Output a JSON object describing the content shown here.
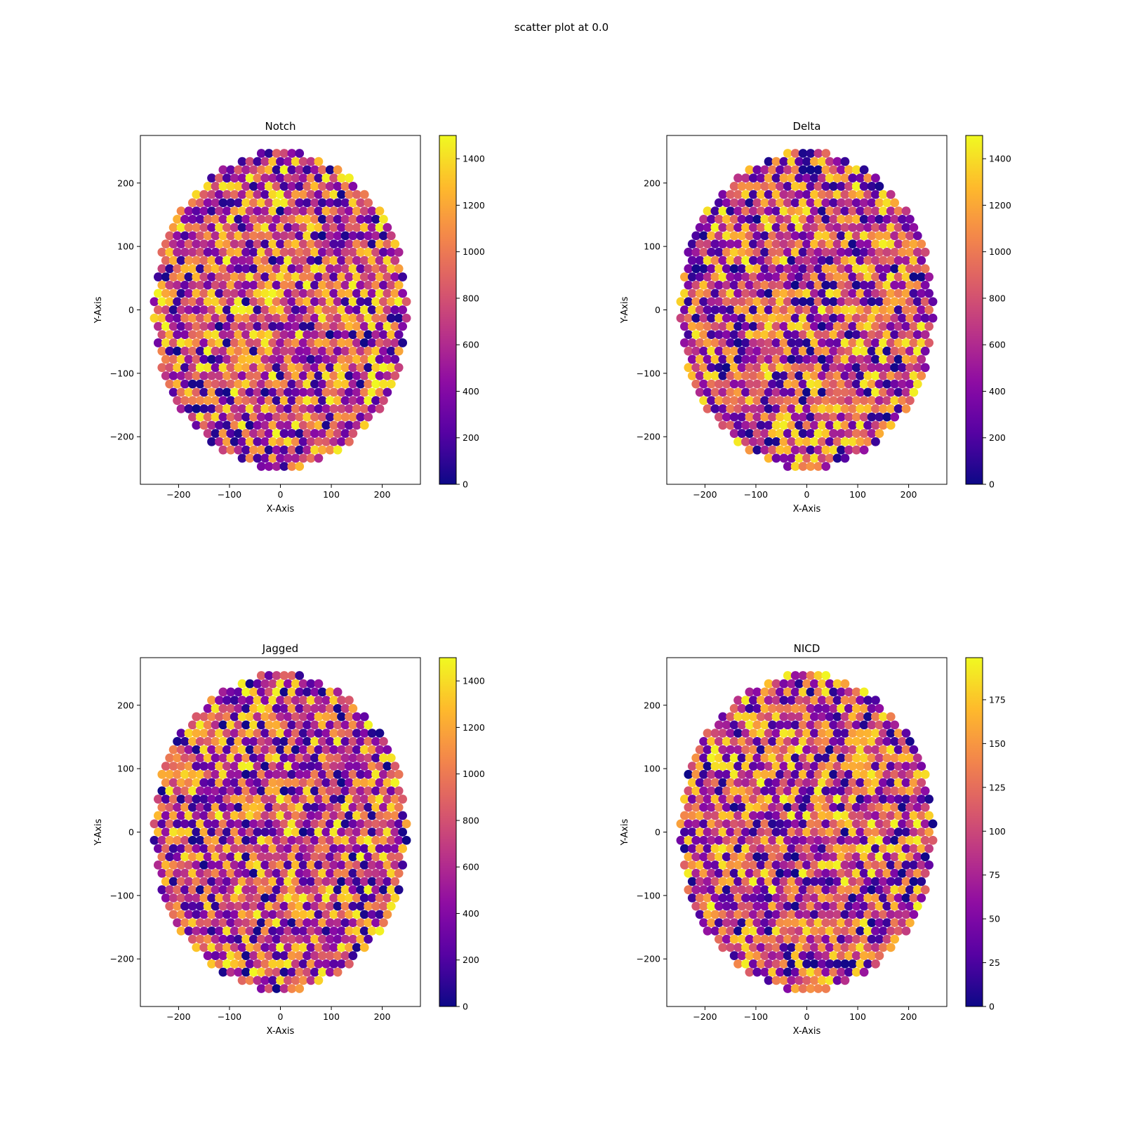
{
  "figure": {
    "suptitle": "scatter plot at 0.0"
  },
  "chart_data": [
    {
      "type": "scatter",
      "title": "Notch",
      "xlabel": "X-Axis",
      "ylabel": "Y-Axis",
      "xlim": [
        -275,
        275
      ],
      "ylim": [
        -275,
        275
      ],
      "xticks": [
        -200,
        -100,
        0,
        100,
        200
      ],
      "yticks": [
        -200,
        -100,
        0,
        100,
        200
      ],
      "colormap": "plasma",
      "color_range": [
        0,
        1500
      ],
      "colorbar_ticks": [
        0,
        200,
        400,
        600,
        800,
        1000,
        1200,
        1400
      ],
      "value_seed": 11,
      "points": "hexagonal grid of cells, spacing 15, clipped to radius 250; colour value per cell in [0, 1500]"
    },
    {
      "type": "scatter",
      "title": "Delta",
      "xlabel": "X-Axis",
      "ylabel": "Y-Axis",
      "xlim": [
        -275,
        275
      ],
      "ylim": [
        -275,
        275
      ],
      "xticks": [
        -200,
        -100,
        0,
        100,
        200
      ],
      "yticks": [
        -200,
        -100,
        0,
        100,
        200
      ],
      "colormap": "plasma",
      "color_range": [
        0,
        1500
      ],
      "colorbar_ticks": [
        0,
        200,
        400,
        600,
        800,
        1000,
        1200,
        1400
      ],
      "value_seed": 29,
      "points": "hexagonal grid of cells, spacing 15, clipped to radius 250; colour value per cell in [0, 1500]"
    },
    {
      "type": "scatter",
      "title": "Jagged",
      "xlabel": "X-Axis",
      "ylabel": "Y-Axis",
      "xlim": [
        -275,
        275
      ],
      "ylim": [
        -275,
        275
      ],
      "xticks": [
        -200,
        -100,
        0,
        100,
        200
      ],
      "yticks": [
        -200,
        -100,
        0,
        100,
        200
      ],
      "colormap": "plasma",
      "color_range": [
        0,
        1500
      ],
      "colorbar_ticks": [
        0,
        200,
        400,
        600,
        800,
        1000,
        1200,
        1400
      ],
      "value_seed": 47,
      "points": "hexagonal grid of cells, spacing 15, clipped to radius 250; colour value per cell in [0, 1500]"
    },
    {
      "type": "scatter",
      "title": "NICD",
      "xlabel": "X-Axis",
      "ylabel": "Y-Axis",
      "xlim": [
        -275,
        275
      ],
      "ylim": [
        -275,
        275
      ],
      "xticks": [
        -200,
        -100,
        0,
        100,
        200
      ],
      "yticks": [
        -200,
        -100,
        0,
        100,
        200
      ],
      "colormap": "plasma",
      "color_range": [
        0,
        199
      ],
      "colorbar_ticks": [
        0,
        25,
        50,
        75,
        100,
        125,
        150,
        175
      ],
      "value_seed": 83,
      "points": "hexagonal grid of cells, spacing 15, clipped to radius 250; colour value per cell in [0, 199]"
    }
  ]
}
